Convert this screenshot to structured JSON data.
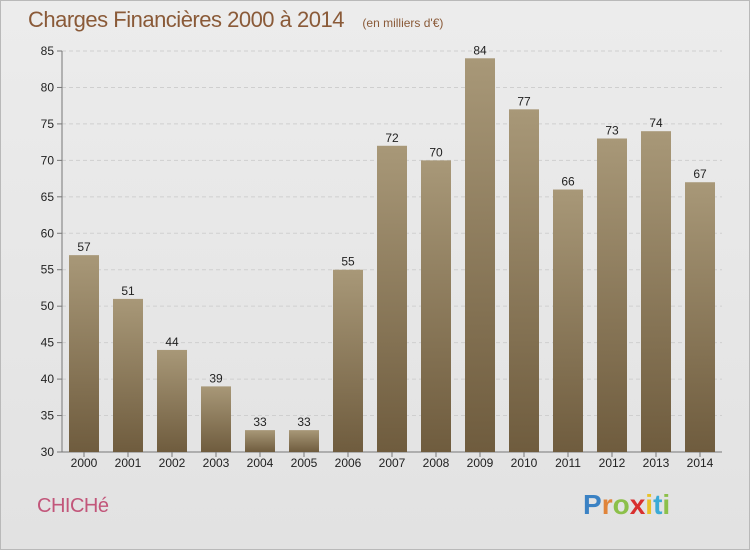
{
  "title": "Charges Financières 2000 à 2014",
  "subtitle": "(en milliers d'€)",
  "commune": "CHICHé",
  "logo": {
    "letters": [
      "P",
      "r",
      "o",
      "x",
      "i",
      "t",
      "i"
    ],
    "colors": [
      "#3b82c4",
      "#e0843a",
      "#8cc04a",
      "#d8302f",
      "#e8c228",
      "#3baad6",
      "#8cc04a"
    ]
  },
  "colors": {
    "bar_light": "#a89878",
    "bar_dark": "#6f5c3e",
    "title": "#8a5a38",
    "commune": "#c2567a"
  },
  "chart_data": {
    "type": "bar",
    "categories": [
      "2000",
      "2001",
      "2002",
      "2003",
      "2004",
      "2005",
      "2006",
      "2007",
      "2008",
      "2009",
      "2010",
      "2011",
      "2012",
      "2013",
      "2014"
    ],
    "values": [
      57,
      51,
      44,
      39,
      33,
      33,
      55,
      72,
      70,
      84,
      77,
      66,
      73,
      74,
      67
    ],
    "ylim": [
      30,
      85
    ],
    "yticks": [
      30,
      35,
      40,
      45,
      50,
      55,
      60,
      65,
      70,
      75,
      80,
      85
    ],
    "grid": true,
    "data_labels": true
  }
}
